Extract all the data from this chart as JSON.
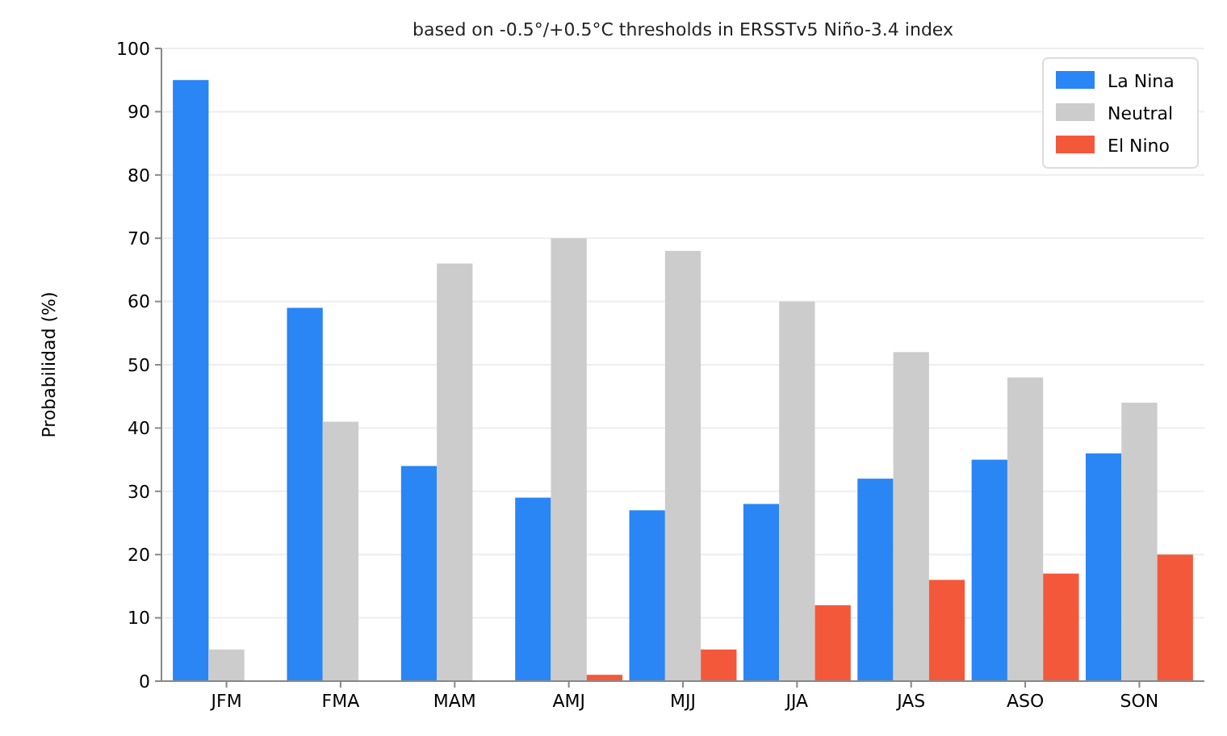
{
  "chart_data": {
    "type": "bar",
    "subtitle": "based on -0.5°/+0.5°C thresholds in ERSSTv5 Niño-3.4 index",
    "ylabel": "Probabilidad (%)",
    "categories": [
      "JFM",
      "FMA",
      "MAM",
      "AMJ",
      "MJJ",
      "JJA",
      "JAS",
      "ASO",
      "SON"
    ],
    "series": [
      {
        "name": "La Nina",
        "color": "#2a85f5",
        "values": [
          95,
          59,
          34,
          29,
          27,
          28,
          32,
          35,
          36
        ]
      },
      {
        "name": "Neutral",
        "color": "#cccccc",
        "values": [
          5,
          41,
          66,
          70,
          68,
          60,
          52,
          48,
          44
        ]
      },
      {
        "name": "El Nino",
        "color": "#f4583a",
        "values": [
          0,
          0,
          0,
          1,
          5,
          12,
          16,
          17,
          20
        ]
      }
    ],
    "ylim": [
      0,
      100
    ],
    "yticks": [
      0,
      10,
      20,
      30,
      40,
      50,
      60,
      70,
      80,
      90,
      100
    ],
    "grid": "y",
    "legend": "top right"
  }
}
